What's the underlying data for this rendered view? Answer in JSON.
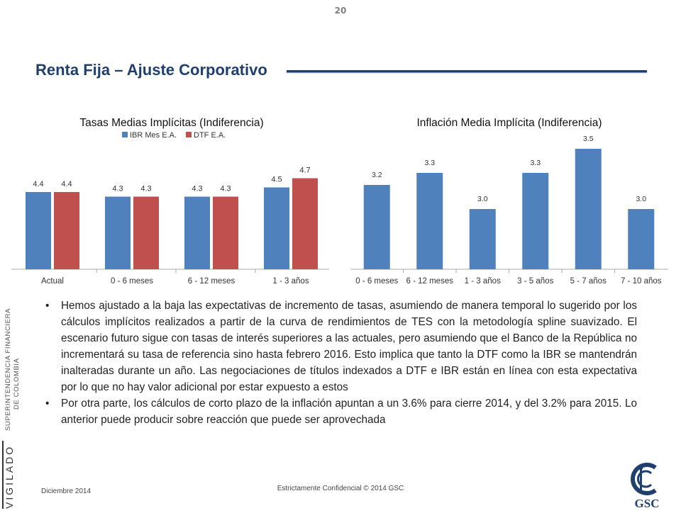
{
  "page_number": "20",
  "title": "Renta Fija – Ajuste Corporativo",
  "colors": {
    "title": "#1f3f6e",
    "ibr": "#4f81bd",
    "dtf": "#c0504d"
  },
  "chart_data": [
    {
      "type": "bar",
      "title": "Tasas Medias Implícitas (Indiferencia)",
      "categories": [
        "Actual",
        "0 - 6 meses",
        "6 - 12 meses",
        "1 - 3 años"
      ],
      "series": [
        {
          "name": "IBR Mes E.A.",
          "values": [
            4.4,
            4.3,
            4.3,
            4.5
          ],
          "labels": [
            "4.4",
            "4.3",
            "4.3",
            "4.5"
          ]
        },
        {
          "name": "DTF E.A.",
          "values": [
            4.4,
            4.3,
            4.3,
            4.7
          ],
          "labels": [
            "4.4",
            "4.3",
            "4.3",
            "4.7"
          ]
        }
      ],
      "legend": "top",
      "grid": false
    },
    {
      "type": "bar",
      "title": "Inflación Media Implícita (Indiferencia)",
      "categories": [
        "0 - 6 meses",
        "6 - 12 meses",
        "1 - 3 años",
        "3 - 5 años",
        "5 - 7 años",
        "7 - 10 años"
      ],
      "values": [
        3.2,
        3.3,
        3.0,
        3.3,
        3.5,
        3.0
      ],
      "labels": [
        "3.2",
        "3.3",
        "3.0",
        "3.3",
        "3.5",
        "3.0"
      ],
      "grid": false
    }
  ],
  "bullets": [
    "Hemos ajustado a la baja las expectativas de incremento de tasas, asumiendo de manera temporal lo sugerido por los cálculos implícitos realizados a partir de la curva de rendimientos de TES con la metodología spline suavizado. El escenario futuro sigue con tasas de interés superiores a las actuales, pero asumiendo que el Banco de la República no incrementará su tasa de referencia sino hasta febrero 2016. Esto implica que tanto la DTF como la IBR se mantendrán inalteradas durante un año. Las negociaciones de títulos indexados a DTF e IBR están en línea con esta expectativa por lo que no hay valor adicional por estar expuesto a estos",
    "Por otra parte, los cálculos de corto plazo de la inflación apuntan a un 3.6% para cierre 2014, y del 3.2% para 2015. Lo anterior puede producir sobre reacción que puede ser aprovechada"
  ],
  "bullet_symbol": "•",
  "side_brand": {
    "line1": "SUPERINTENDENCIA FINANCIERA",
    "line2": "DE COLOMBIA",
    "vigilado": "VIGILADO"
  },
  "footer": {
    "date": "Diciembre 2014",
    "confidential": "Estrictamente Confidencial © 2014 GSC"
  },
  "logo_text": "GSC"
}
